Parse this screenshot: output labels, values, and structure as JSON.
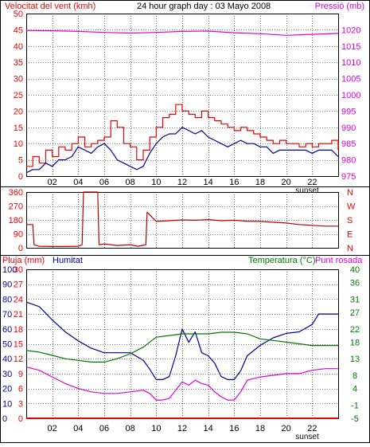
{
  "colors": {
    "red": "#ee0000",
    "darkred": "#bb0000",
    "blue": "#000099",
    "magenta": "#dd00dd",
    "green": "#007700",
    "grid": "#000000",
    "frame": "#000000"
  },
  "chart_data": [
    {
      "type": "line",
      "title": "24 hour graph day : 03 Mayo 2008",
      "left_label": "Velocitat del vent (kmh)",
      "right_label": "Pressió (mb)",
      "x_ticks": [
        "02",
        "04",
        "06",
        "08",
        "10",
        "12",
        "14",
        "16",
        "18",
        "20",
        "22"
      ],
      "sunset_label": "sunset",
      "left_ylim": [
        0,
        50
      ],
      "left_yticks": [
        0,
        5,
        10,
        15,
        20,
        25,
        30,
        35,
        40,
        45,
        50
      ],
      "right_ylim": [
        975,
        1025
      ],
      "right_yticks": [
        975,
        980,
        985,
        990,
        995,
        1000,
        1005,
        1010,
        1015,
        1020
      ],
      "grid": true,
      "series": [
        {
          "key": "gust",
          "axis": "left",
          "color": "red",
          "style": "step",
          "x": [
            0,
            0.5,
            1,
            1.5,
            2,
            2.5,
            3,
            3.5,
            4,
            4.5,
            5,
            5.5,
            6,
            6.5,
            7,
            7.5,
            8,
            8.5,
            9,
            9.5,
            10,
            10.5,
            11,
            11.5,
            12,
            12.5,
            13,
            13.5,
            14,
            14.5,
            15,
            15.5,
            16,
            16.5,
            17,
            17.5,
            18,
            18.5,
            19,
            19.5,
            20,
            20.5,
            21,
            21.5,
            22,
            22.5,
            23,
            23.5,
            24
          ],
          "values": [
            3,
            6,
            4,
            8,
            6,
            9,
            8,
            10,
            12,
            9,
            10,
            11,
            12,
            17,
            15,
            10,
            9,
            5,
            8,
            12,
            15,
            18,
            19,
            22,
            20,
            19,
            18,
            20,
            18,
            17,
            16,
            15,
            14,
            15,
            14,
            13,
            12,
            11,
            10,
            11,
            10,
            10,
            9,
            10,
            9,
            10,
            10,
            11,
            8
          ]
        },
        {
          "key": "wind",
          "axis": "left",
          "color": "blue",
          "style": "line",
          "x": [
            0,
            0.5,
            1,
            1.5,
            2,
            2.5,
            3,
            3.5,
            4,
            4.5,
            5,
            5.5,
            6,
            6.5,
            7,
            7.5,
            8,
            8.5,
            9,
            9.5,
            10,
            10.5,
            11,
            11.5,
            12,
            12.5,
            13,
            13.5,
            14,
            14.5,
            15,
            15.5,
            16,
            16.5,
            17,
            17.5,
            18,
            18.5,
            19,
            19.5,
            20,
            20.5,
            21,
            21.5,
            22,
            22.5,
            23,
            23.5,
            24
          ],
          "values": [
            1,
            2,
            2,
            4,
            3,
            5,
            5,
            6,
            9,
            8,
            7,
            9,
            10,
            8,
            5,
            4,
            3,
            2,
            3,
            7,
            10,
            12,
            13,
            13,
            15,
            14,
            13,
            14,
            12,
            11,
            10,
            9,
            10,
            11,
            10,
            10,
            9,
            9,
            7,
            8,
            8,
            8,
            8,
            8,
            7,
            8,
            8,
            8,
            6
          ]
        },
        {
          "key": "pressure",
          "axis": "right",
          "color": "magenta",
          "style": "line",
          "x": [
            0,
            2,
            4,
            6,
            8,
            10,
            12,
            14,
            16,
            18,
            20,
            22,
            24
          ],
          "values": [
            1019.8,
            1019.7,
            1019.5,
            1019.2,
            1019.0,
            1019.2,
            1019.5,
            1019.6,
            1019.1,
            1018.8,
            1018.3,
            1018.6,
            1018.9
          ]
        }
      ]
    },
    {
      "type": "line",
      "title": "",
      "y_ticks_left": [
        "360",
        "270",
        "180",
        "90",
        "0"
      ],
      "y_ticks_right": [
        "N",
        "W",
        "S",
        "E",
        "N"
      ],
      "ylim": [
        0,
        360
      ],
      "x_ticks": [
        "02",
        "04",
        "06",
        "08",
        "10",
        "12",
        "14",
        "16",
        "18",
        "20",
        "22"
      ],
      "series": [
        {
          "key": "direction",
          "axis": "left",
          "color": "darkred",
          "style": "line",
          "x": [
            0,
            0.5,
            0.6,
            1,
            2,
            3,
            4,
            4.3,
            4.4,
            5,
            5.5,
            5.6,
            6,
            7,
            8,
            8.6,
            9.2,
            9.3,
            10,
            11,
            12,
            13,
            14,
            15,
            16,
            17,
            18,
            19,
            20,
            21,
            22,
            23,
            24
          ],
          "values": [
            150,
            150,
            20,
            10,
            8,
            8,
            10,
            20,
            360,
            360,
            360,
            20,
            25,
            15,
            20,
            10,
            20,
            230,
            170,
            175,
            180,
            178,
            182,
            175,
            178,
            172,
            170,
            165,
            160,
            150,
            145,
            140,
            140
          ]
        }
      ]
    },
    {
      "type": "line",
      "title": "",
      "left_label_1": "Pluja (mm)",
      "left_label_2": "Humitat",
      "right_label_1": "Temperatura (°C)",
      "right_label_2": "Punt rosada",
      "x_ticks": [
        "02",
        "04",
        "06",
        "08",
        "10",
        "12",
        "14",
        "16",
        "18",
        "20",
        "22"
      ],
      "sunset_label": "sunset",
      "humidity_ylim": [
        0,
        100
      ],
      "humidity_yticks": [
        0,
        10,
        20,
        30,
        40,
        50,
        60,
        70,
        80,
        90,
        100
      ],
      "rain_ylim": [
        0,
        30
      ],
      "rain_yticks": [
        0,
        3,
        6,
        9,
        12,
        15,
        18,
        21,
        24,
        27,
        30
      ],
      "temp_ylim": [
        -5,
        40
      ],
      "temp_yticks": [
        -5,
        -1,
        4,
        8,
        13,
        18,
        22,
        27,
        31,
        36,
        40
      ],
      "grid": true,
      "series": [
        {
          "key": "humidity",
          "axis": "humidity",
          "color": "blue",
          "style": "line",
          "x": [
            0,
            1,
            2,
            3,
            4,
            5,
            6,
            7,
            8,
            9,
            9.5,
            10,
            10.5,
            11,
            11.5,
            12,
            12.5,
            13,
            13.5,
            14,
            14.5,
            15,
            15.5,
            16,
            16.5,
            17,
            18,
            19,
            20,
            21,
            22,
            22.5,
            23,
            24
          ],
          "values": [
            78,
            75,
            66,
            58,
            52,
            47,
            44,
            44,
            44,
            39,
            33,
            26,
            26,
            28,
            42,
            60,
            51,
            58,
            44,
            42,
            37,
            28,
            26,
            26,
            32,
            42,
            49,
            54,
            57,
            58,
            63,
            70,
            70,
            70
          ]
        },
        {
          "key": "temperature",
          "axis": "temp",
          "color": "green",
          "style": "line",
          "x": [
            0,
            1,
            2,
            3,
            4,
            5,
            6,
            7,
            8,
            9,
            10,
            11,
            12,
            13,
            14,
            15,
            16,
            17,
            18,
            19,
            20,
            21,
            22,
            23,
            24
          ],
          "values": [
            15.5,
            15.0,
            14.0,
            13.0,
            12.5,
            12.0,
            12.0,
            13.0,
            14.5,
            16.5,
            19.5,
            20.0,
            20.5,
            20.5,
            20.5,
            21.0,
            21.0,
            20.5,
            19.0,
            18.5,
            18.0,
            17.5,
            17.0,
            17.0,
            17.0
          ]
        },
        {
          "key": "dewpoint",
          "axis": "temp",
          "color": "magenta",
          "style": "line",
          "x": [
            0,
            1,
            2,
            3,
            4,
            5,
            6,
            7,
            8,
            9,
            9.5,
            10,
            10.5,
            11,
            11.5,
            12,
            12.5,
            13,
            13.5,
            14,
            14.5,
            15,
            15.5,
            16,
            16.5,
            17,
            18,
            19,
            20,
            21,
            22,
            23,
            24
          ],
          "values": [
            10.5,
            9.5,
            7.5,
            5.5,
            4.0,
            3.0,
            2.5,
            2.5,
            3.0,
            3.5,
            2.5,
            0.5,
            0.5,
            1.0,
            3.5,
            6.0,
            5.0,
            6.5,
            5.5,
            5.0,
            3.0,
            1.5,
            0.5,
            0.5,
            3.0,
            6.5,
            7.5,
            8.0,
            8.5,
            8.5,
            9.5,
            10.0,
            10.0
          ]
        },
        {
          "key": "rain",
          "axis": "rain",
          "color": "red",
          "style": "line",
          "x": [
            0,
            24
          ],
          "values": [
            0,
            0
          ]
        }
      ]
    }
  ]
}
